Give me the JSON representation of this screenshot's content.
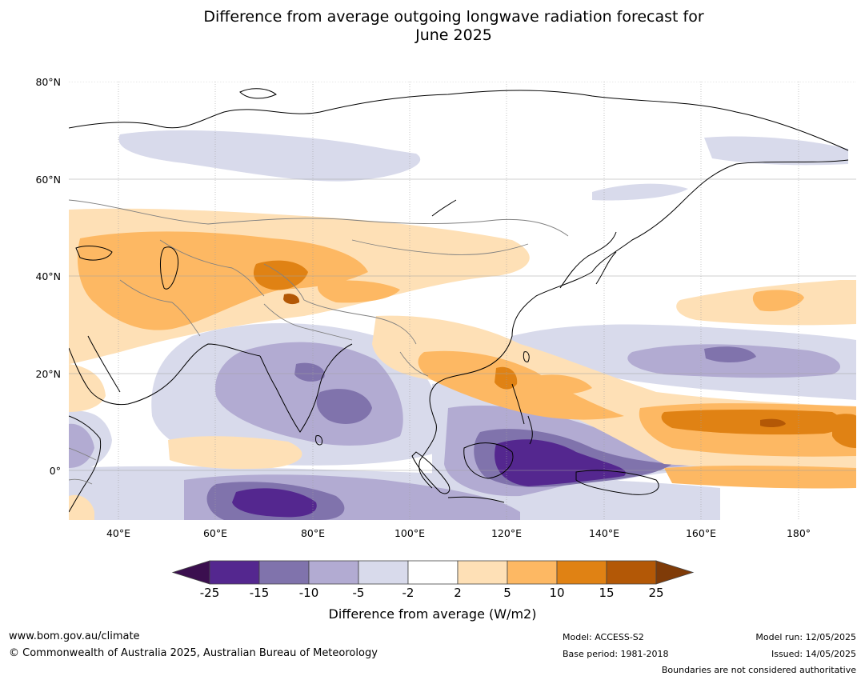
{
  "title_line1": "Difference from average outgoing longwave radiation forecast for",
  "title_line2": "June 2025",
  "map": {
    "lat_labels": [
      "80°N",
      "60°N",
      "40°N",
      "20°N",
      "0°"
    ],
    "lon_labels": [
      "40°E",
      "60°E",
      "80°E",
      "100°E",
      "120°E",
      "140°E",
      "160°E",
      "180°"
    ],
    "anomaly_colors": {
      "below_-25": "#3b0f4f",
      "-25_to_-15": "#54278f",
      "-15_to_-10": "#8073ac",
      "-10_to_-5": "#b2abd2",
      "-5_to_-2": "#d8daeb",
      "-2_to_2": "#ffffff",
      "2_to_5": "#fee0b6",
      "5_to_10": "#fdb863",
      "10_to_15": "#e08214",
      "15_to_25": "#b35806",
      "above_25": "#7f3b08"
    }
  },
  "colorbar": {
    "ticks": [
      "-25",
      "-15",
      "-10",
      "-5",
      "-2",
      "2",
      "5",
      "10",
      "15",
      "25"
    ],
    "colors": [
      "#54278f",
      "#8073ac",
      "#b2abd2",
      "#d8daeb",
      "#ffffff",
      "#fee0b6",
      "#fdb863",
      "#e08214",
      "#b35806"
    ],
    "low_extend_color": "#3b0f4f",
    "high_extend_color": "#7f3b08",
    "label": "Difference from average (W/m2)"
  },
  "footer": {
    "website": "www.bom.gov.au/climate",
    "copyright": "© Commonwealth of Australia 2025, Australian Bureau of Meteorology",
    "model": "Model: ACCESS-S2",
    "base_period": "Base period: 1981-2018",
    "model_run": "Model run: 12/05/2025",
    "issued": "Issued: 14/05/2025",
    "disclaimer": "Boundaries are not considered authoritative"
  }
}
